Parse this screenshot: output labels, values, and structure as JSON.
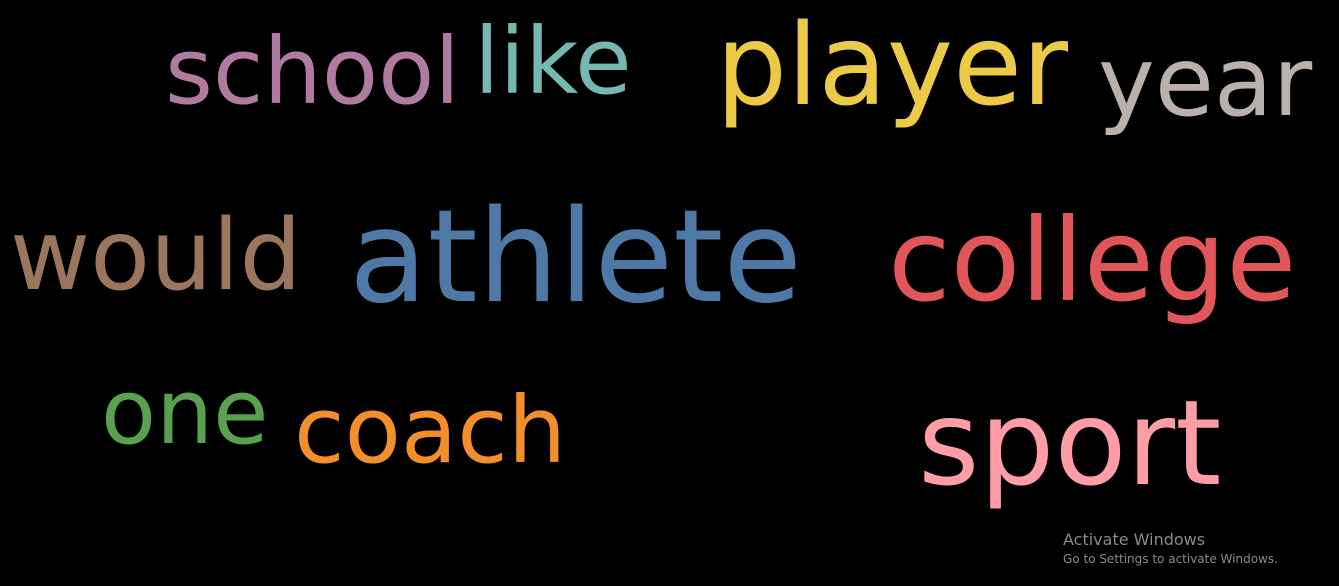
{
  "words": [
    {
      "id": "school",
      "text": "school",
      "color": "#b07aa1"
    },
    {
      "id": "like",
      "text": "like",
      "color": "#76b7b2"
    },
    {
      "id": "player",
      "text": "player",
      "color": "#edc948"
    },
    {
      "id": "year",
      "text": "year",
      "color": "#bab0ac"
    },
    {
      "id": "would",
      "text": "would",
      "color": "#9c755f"
    },
    {
      "id": "athlete",
      "text": "athlete",
      "color": "#4e79a7"
    },
    {
      "id": "college",
      "text": "college",
      "color": "#e15759"
    },
    {
      "id": "one",
      "text": "one",
      "color": "#59a14f"
    },
    {
      "id": "coach",
      "text": "coach",
      "color": "#f28e2b"
    },
    {
      "id": "sport",
      "text": "sport",
      "color": "#ff9da7"
    }
  ],
  "activation": {
    "title": "Activate Windows",
    "subtitle": "Go to Settings to activate Windows."
  }
}
